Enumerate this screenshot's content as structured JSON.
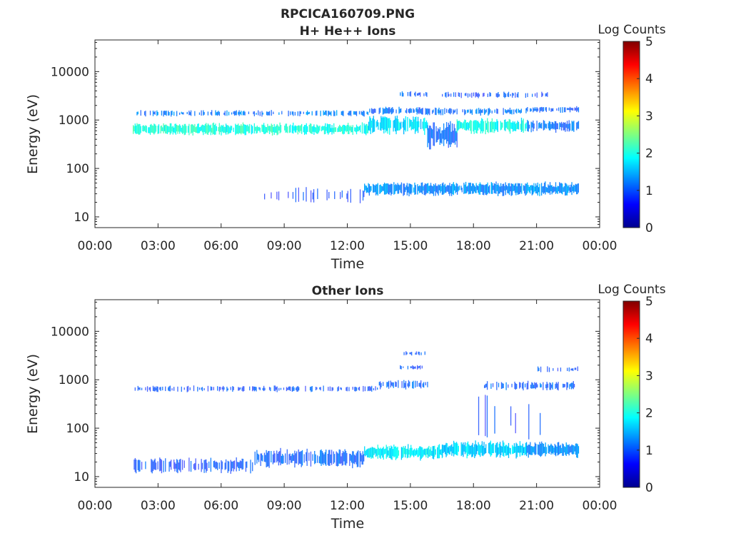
{
  "figure": {
    "title_line1": "RPCICA160709.PNG"
  },
  "panels": [
    {
      "title": "H+ He++ Ions",
      "xlabel": "Time",
      "ylabel": "Energy (eV)",
      "colorbar_label": "Log Counts"
    },
    {
      "title": "Other Ions",
      "xlabel": "Time",
      "ylabel": "Energy (eV)",
      "colorbar_label": "Log Counts"
    }
  ],
  "chart_data": [
    {
      "type": "heatmap",
      "title": "H+ He++ Ions",
      "xlabel": "Time",
      "ylabel": "Energy (eV)",
      "x_unit": "hours",
      "xlim": [
        0,
        24
      ],
      "x_ticks": [
        0,
        3,
        6,
        9,
        12,
        15,
        18,
        21,
        24
      ],
      "x_tick_labels": [
        "00:00",
        "03:00",
        "06:00",
        "09:00",
        "12:00",
        "15:00",
        "18:00",
        "21:00",
        "00:00"
      ],
      "y_scale": "log",
      "ylim": [
        6,
        45000
      ],
      "y_ticks": [
        10,
        100,
        1000,
        10000
      ],
      "y_tick_labels": [
        "10",
        "100",
        "1000",
        "10000"
      ],
      "colorbar": {
        "label": "Log Counts",
        "range": [
          0,
          5
        ],
        "ticks": [
          0,
          1,
          2,
          3,
          4,
          5
        ],
        "tick_labels": [
          "0",
          "1",
          "2",
          "3",
          "4",
          "5"
        ],
        "colormap": "jet"
      },
      "data_time_range": [
        1.8,
        23.0
      ],
      "bands": [
        {
          "t": [
            1.8,
            13.0
          ],
          "e_center": 650,
          "spread": 0.08,
          "log_counts": 1.7,
          "density": 0.9
        },
        {
          "t": [
            1.8,
            13.0
          ],
          "e_center": 1380,
          "spread": 0.04,
          "log_counts": 0.8,
          "density": 0.5
        },
        {
          "t": [
            13.0,
            15.8
          ],
          "e_center": 800,
          "spread": 0.12,
          "log_counts": 1.4,
          "density": 0.9
        },
        {
          "t": [
            13.0,
            15.8
          ],
          "e_center": 1550,
          "spread": 0.05,
          "log_counts": 0.7,
          "density": 0.7
        },
        {
          "t": [
            14.5,
            15.8
          ],
          "e_center": 3400,
          "spread": 0.04,
          "log_counts": 0.6,
          "density": 0.5
        },
        {
          "t": [
            15.8,
            17.2
          ],
          "e_center": 480,
          "spread": 0.18,
          "log_counts": 0.6,
          "density": 0.9
        },
        {
          "t": [
            15.8,
            20.5
          ],
          "e_center": 1500,
          "spread": 0.05,
          "log_counts": 0.7,
          "density": 0.7
        },
        {
          "t": [
            17.2,
            20.5
          ],
          "e_center": 750,
          "spread": 0.1,
          "log_counts": 1.6,
          "density": 0.9
        },
        {
          "t": [
            20.5,
            23.0
          ],
          "e_center": 750,
          "spread": 0.08,
          "log_counts": 0.7,
          "density": 0.8
        },
        {
          "t": [
            20.5,
            23.0
          ],
          "e_center": 1650,
          "spread": 0.04,
          "log_counts": 0.6,
          "density": 0.6
        },
        {
          "t": [
            16.5,
            21.5
          ],
          "e_center": 3300,
          "spread": 0.04,
          "log_counts": 0.5,
          "density": 0.4
        },
        {
          "t": [
            8.0,
            12.8
          ],
          "e_center": 28,
          "spread": 0.1,
          "log_counts": 0.4,
          "density": 0.25
        },
        {
          "t": [
            12.8,
            23.0
          ],
          "e_center": 38,
          "spread": 0.09,
          "log_counts": 0.9,
          "density": 0.95
        }
      ]
    },
    {
      "type": "heatmap",
      "title": "Other Ions",
      "xlabel": "Time",
      "ylabel": "Energy (eV)",
      "x_unit": "hours",
      "xlim": [
        0,
        24
      ],
      "x_ticks": [
        0,
        3,
        6,
        9,
        12,
        15,
        18,
        21,
        24
      ],
      "x_tick_labels": [
        "00:00",
        "03:00",
        "06:00",
        "09:00",
        "12:00",
        "15:00",
        "18:00",
        "21:00",
        "00:00"
      ],
      "y_scale": "log",
      "ylim": [
        6,
        45000
      ],
      "y_ticks": [
        10,
        100,
        1000,
        10000
      ],
      "y_tick_labels": [
        "10",
        "100",
        "1000",
        "10000"
      ],
      "colorbar": {
        "label": "Log Counts",
        "range": [
          0,
          5
        ],
        "ticks": [
          0,
          1,
          2,
          3,
          4,
          5
        ],
        "tick_labels": [
          "0",
          "1",
          "2",
          "3",
          "4",
          "5"
        ],
        "colormap": "jet"
      },
      "data_time_range": [
        1.8,
        23.0
      ],
      "bands": [
        {
          "t": [
            1.8,
            13.5
          ],
          "e_center": 650,
          "spread": 0.04,
          "log_counts": 0.5,
          "density": 0.5
        },
        {
          "t": [
            13.5,
            15.8
          ],
          "e_center": 800,
          "spread": 0.06,
          "log_counts": 0.6,
          "density": 0.6
        },
        {
          "t": [
            14.5,
            15.8
          ],
          "e_center": 3500,
          "spread": 0.03,
          "log_counts": 0.5,
          "density": 0.4
        },
        {
          "t": [
            14.5,
            15.8
          ],
          "e_center": 1800,
          "spread": 0.03,
          "log_counts": 0.5,
          "density": 0.4
        },
        {
          "t": [
            18.5,
            23.0
          ],
          "e_center": 750,
          "spread": 0.06,
          "log_counts": 0.6,
          "density": 0.5
        },
        {
          "t": [
            21.0,
            23.0
          ],
          "e_center": 1650,
          "spread": 0.04,
          "log_counts": 0.5,
          "density": 0.4
        },
        {
          "t": [
            18.0,
            21.5
          ],
          "e_center": 150,
          "spread": 0.3,
          "log_counts": 0.4,
          "density": 0.2
        },
        {
          "t": [
            1.8,
            7.5
          ],
          "e_center": 17,
          "spread": 0.1,
          "log_counts": 0.5,
          "density": 0.6
        },
        {
          "t": [
            7.5,
            12.8
          ],
          "e_center": 24,
          "spread": 0.12,
          "log_counts": 0.6,
          "density": 0.75
        },
        {
          "t": [
            12.8,
            16.5
          ],
          "e_center": 32,
          "spread": 0.1,
          "log_counts": 1.5,
          "density": 0.95
        },
        {
          "t": [
            16.5,
            20.5
          ],
          "e_center": 36,
          "spread": 0.11,
          "log_counts": 1.3,
          "density": 0.95
        },
        {
          "t": [
            20.5,
            23.0
          ],
          "e_center": 36,
          "spread": 0.1,
          "log_counts": 0.9,
          "density": 0.95
        }
      ]
    }
  ]
}
